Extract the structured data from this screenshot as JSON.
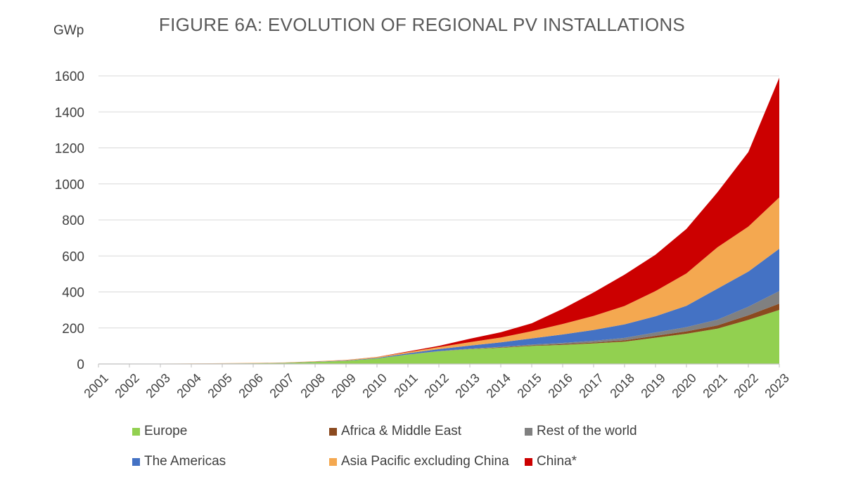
{
  "chart_data": {
    "type": "area",
    "stacked": true,
    "title": "FIGURE 6A: EVOLUTION OF REGIONAL PV INSTALLATIONS",
    "xlabel": "",
    "ylabel": "GWp",
    "ylim": [
      0,
      1600
    ],
    "yticks": [
      0,
      200,
      400,
      600,
      800,
      1000,
      1200,
      1400,
      1600
    ],
    "grid": true,
    "legend_position": "bottom",
    "x": [
      "2001",
      "2002",
      "2003",
      "2004",
      "2005",
      "2006",
      "2007",
      "2008",
      "2009",
      "2010",
      "2011",
      "2012",
      "2013",
      "2014",
      "2015",
      "2016",
      "2017",
      "2018",
      "2019",
      "2020",
      "2021",
      "2022",
      "2023"
    ],
    "series": [
      {
        "name": "Europe",
        "color": "#92D050",
        "values": [
          0.3,
          0.4,
          0.6,
          1.3,
          2.3,
          3.3,
          5.3,
          11,
          17,
          30,
          52,
          70,
          82,
          90,
          100,
          106,
          114,
          124,
          146,
          168,
          196,
          245,
          300
        ]
      },
      {
        "name": "Africa & Middle East",
        "color": "#8B4A1F",
        "values": [
          0,
          0,
          0,
          0,
          0,
          0,
          0,
          0,
          0,
          0.1,
          0.3,
          0.6,
          1,
          2,
          3,
          4,
          5,
          7,
          10,
          13,
          18,
          25,
          35
        ]
      },
      {
        "name": "Rest of the world",
        "color": "#808080",
        "values": [
          0,
          0,
          0,
          0,
          0,
          0,
          0,
          0,
          0.1,
          0.3,
          0.6,
          1,
          2,
          3,
          5,
          7,
          10,
          14,
          19,
          24,
          32,
          48,
          70
        ]
      },
      {
        "name": "The Americas",
        "color": "#4472C4",
        "values": [
          0.2,
          0.2,
          0.3,
          0.4,
          0.5,
          0.7,
          1,
          1.5,
          2,
          3,
          6,
          11,
          17,
          25,
          34,
          47,
          60,
          75,
          90,
          118,
          172,
          195,
          235
        ]
      },
      {
        "name": "Asia Pacific excluding China",
        "color": "#F4A850",
        "values": [
          0.6,
          0.8,
          1,
          1.3,
          1.6,
          1.9,
          2,
          2.5,
          3,
          5,
          7,
          11,
          19,
          27,
          40,
          58,
          78,
          102,
          140,
          180,
          230,
          250,
          285
        ]
      },
      {
        "name": "China*",
        "color": "#CC0000",
        "values": [
          0,
          0,
          0,
          0,
          0,
          0,
          0,
          0,
          0.3,
          0.8,
          3.3,
          7,
          19,
          29,
          44,
          84,
          130,
          174,
          202,
          247,
          305,
          414,
          665
        ]
      }
    ]
  }
}
